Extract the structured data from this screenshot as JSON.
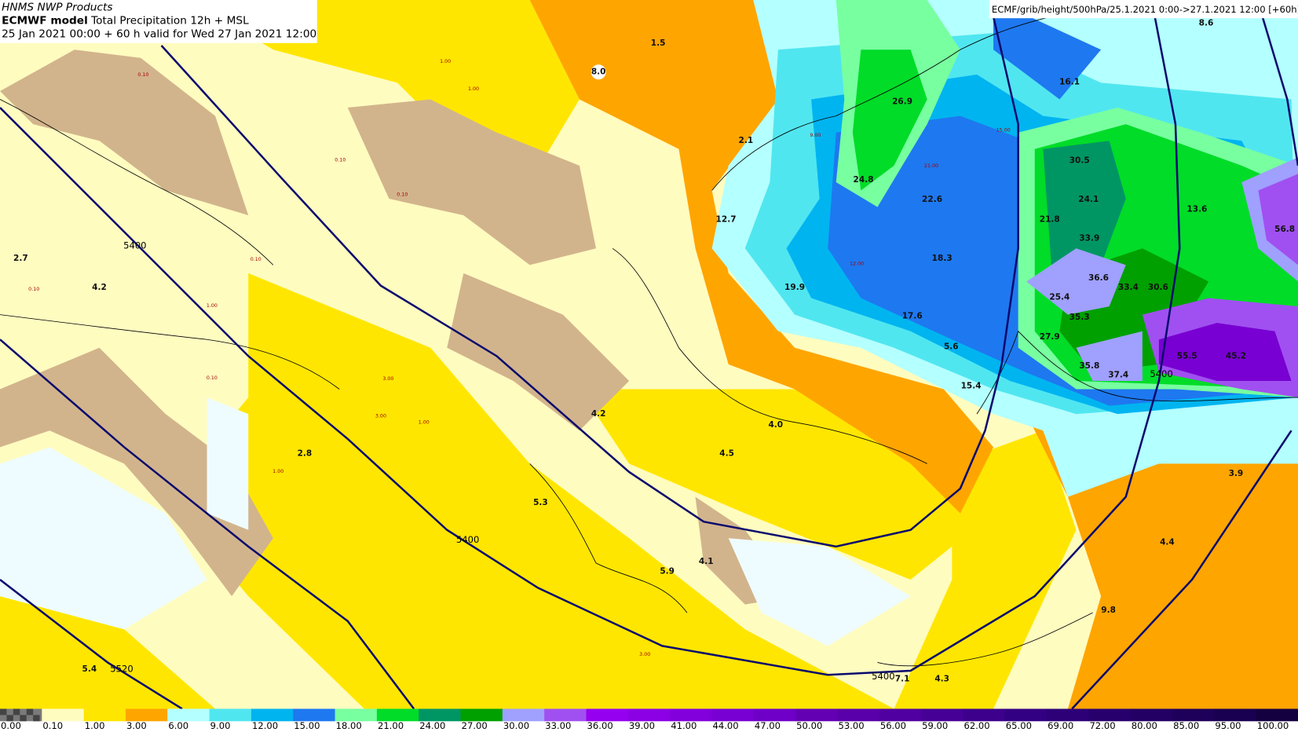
{
  "header": {
    "source": "HNMS NWP Products",
    "model": "ECMWF model",
    "product": "Total Precipitation 12h + MSL",
    "valid": "25 Jan 2021 00:00 + 60 h valid for Wed 27 Jan 2021 12:00"
  },
  "top_right": "ECMF/grib/height/500hPa/25.1.2021 0:00->27.1.2021 12:00 [+60h]",
  "colorbar": {
    "labels": [
      "0.00",
      "0.10",
      "1.00",
      "3.00",
      "6.00",
      "9.00",
      "12.00",
      "15.00",
      "18.00",
      "21.00",
      "24.00",
      "27.00",
      "30.00",
      "33.00",
      "36.00",
      "39.00",
      "41.00",
      "44.00",
      "47.00",
      "50.00",
      "53.00",
      "56.00",
      "59.00",
      "62.00",
      "65.00",
      "69.00",
      "72.00",
      "80.00",
      "85.00",
      "95.00",
      "100.00"
    ],
    "colors": [
      "#7a7a7a",
      "#fffcc0",
      "#ffe600",
      "#ffa500",
      "#b4ffff",
      "#50e6f0",
      "#00b4f0",
      "#1e78f0",
      "#78ffa0",
      "#00dc28",
      "#009664",
      "#00a000",
      "#a0a0ff",
      "#a050f0",
      "#9600f0",
      "#8c00e6",
      "#8200dc",
      "#7800d2",
      "#6e00c8",
      "#6400b4",
      "#5a00aa",
      "#5000a0",
      "#460096",
      "#3c008c",
      "#320082",
      "#2d0078",
      "#28006e",
      "#230064",
      "#1e005a",
      "#190050",
      "#140040"
    ]
  },
  "contour_labels": [
    "5400",
    "5400",
    "5400",
    "5400",
    "5520"
  ],
  "point_values": [
    "8.0",
    "1.5",
    "2.1",
    "12.7",
    "26.9",
    "24.8",
    "22.6",
    "16.1",
    "30.5",
    "24.1",
    "21.8",
    "33.9",
    "13.6",
    "56.8",
    "19.9",
    "18.3",
    "36.6",
    "33.4",
    "30.6",
    "25.4",
    "17.6",
    "35.3",
    "27.9",
    "5.6",
    "55.5",
    "45.2",
    "35.8",
    "37.4",
    "15.4",
    "4.2",
    "4.0",
    "4.5",
    "2.8",
    "3.9",
    "5.3",
    "4.4",
    "5.9",
    "4.1",
    "9.8",
    "5.4",
    "4.3",
    "7.1",
    "2.7",
    "4.2",
    "8.6"
  ],
  "small_values": [
    "0.10",
    "1.00",
    "1.00",
    "0.10",
    "0.10",
    "0.10",
    "1.00",
    "3.00",
    "3.00",
    "0.10",
    "1.00",
    "3.00",
    "1.00",
    "9.00",
    "12.00",
    "15.00",
    "21.00",
    "0.10"
  ]
}
